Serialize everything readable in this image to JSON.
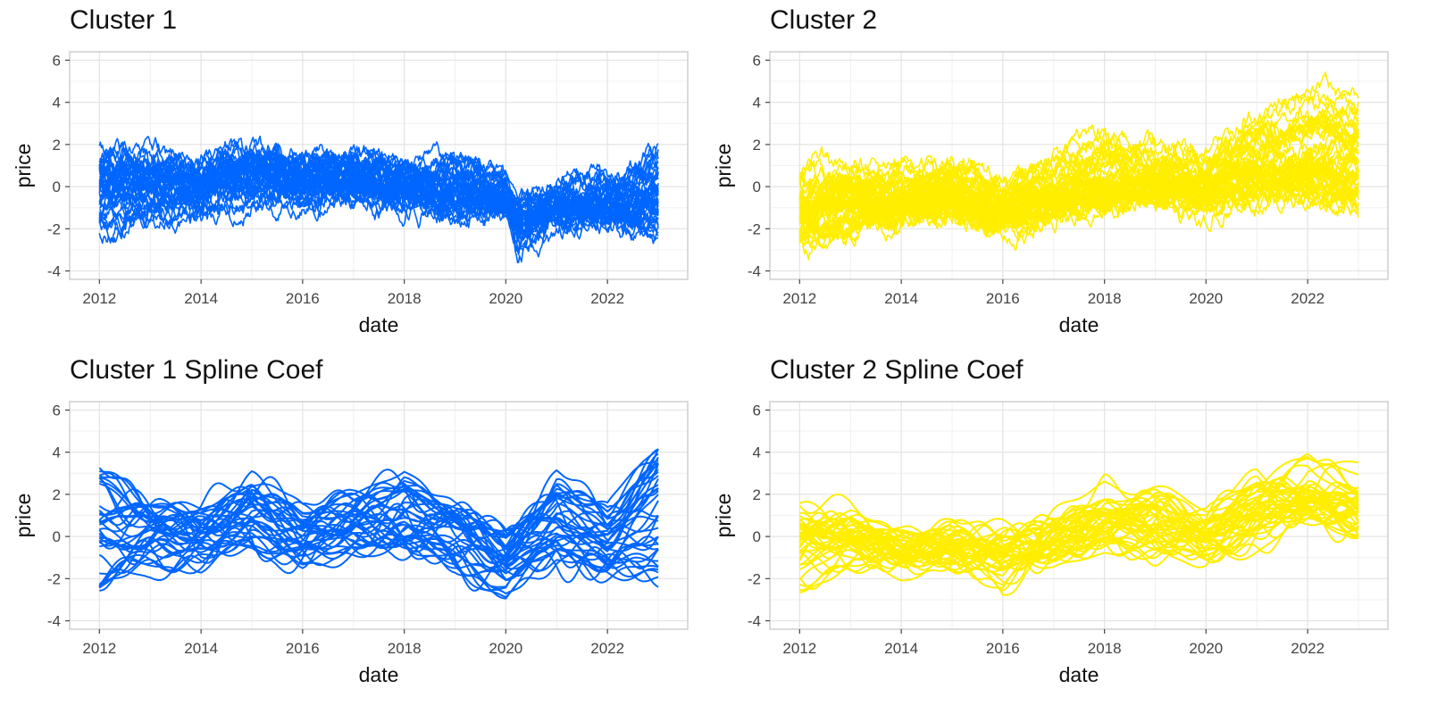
{
  "chart_data": [
    {
      "type": "line",
      "title": "Cluster 1",
      "xlabel": "date",
      "ylabel": "price",
      "x_ticks": [
        "2012",
        "2014",
        "2016",
        "2018",
        "2020",
        "2022"
      ],
      "y_ticks": [
        "-4",
        "-2",
        "0",
        "2",
        "4",
        "6"
      ],
      "xlim": [
        "2011-06-01",
        "2023-08-01"
      ],
      "ylim": [
        -4.4,
        6.4
      ],
      "color": "#0066FF",
      "style": "raw",
      "grid": true,
      "legend": "none",
      "series_count": 40,
      "series": [
        {
          "x": [
            "2012-01-01",
            "2013-01-01",
            "2014-01-01",
            "2015-01-01",
            "2016-01-01",
            "2017-01-01",
            "2018-01-01",
            "2019-01-01",
            "2020-01-01",
            "2020-04-01",
            "2021-01-01",
            "2022-01-01",
            "2023-01-01"
          ],
          "values": [
            3.0,
            2.2,
            1.3,
            2.4,
            1.9,
            1.6,
            1.2,
            1.0,
            0.2,
            -2.3,
            -0.9,
            -0.4,
            1.7
          ]
        },
        {
          "x": [
            "2012-01-01",
            "2013-01-01",
            "2014-01-01",
            "2015-01-01",
            "2016-01-01",
            "2017-01-01",
            "2018-01-01",
            "2019-01-01",
            "2020-01-01",
            "2020-04-01",
            "2021-01-01",
            "2022-01-01",
            "2023-01-01"
          ],
          "values": [
            1.0,
            0.8,
            0.5,
            0.9,
            0.4,
            0.6,
            0.2,
            0.1,
            -0.2,
            -1.6,
            -0.8,
            -1.0,
            -0.4
          ]
        },
        {
          "x": [
            "2012-01-01",
            "2013-01-01",
            "2014-01-01",
            "2015-01-01",
            "2016-01-01",
            "2017-01-01",
            "2018-01-01",
            "2019-01-01",
            "2020-01-01",
            "2020-04-01",
            "2021-01-01",
            "2022-01-01",
            "2023-01-01"
          ],
          "values": [
            -1.9,
            -1.2,
            -0.8,
            -0.2,
            -0.4,
            -0.5,
            -0.6,
            -0.9,
            -1.0,
            -1.8,
            -1.2,
            -1.6,
            -2.2
          ]
        },
        {
          "x": [
            "2012-01-01",
            "2013-01-01",
            "2014-01-01",
            "2015-01-01",
            "2016-01-01",
            "2017-01-01",
            "2018-01-01",
            "2019-01-01",
            "2020-01-01",
            "2020-04-01",
            "2021-01-01",
            "2022-01-01",
            "2023-01-01"
          ],
          "values": [
            -0.2,
            0.1,
            0.6,
            1.2,
            0.8,
            0.9,
            0.3,
            0.4,
            0.0,
            -1.2,
            -0.3,
            0.1,
            1.2
          ]
        }
      ]
    },
    {
      "type": "line",
      "title": "Cluster 2",
      "xlabel": "date",
      "ylabel": "price",
      "x_ticks": [
        "2012",
        "2014",
        "2016",
        "2018",
        "2020",
        "2022"
      ],
      "y_ticks": [
        "-4",
        "-2",
        "0",
        "2",
        "4",
        "6"
      ],
      "xlim": [
        "2011-06-01",
        "2023-08-01"
      ],
      "ylim": [
        -4.4,
        6.4
      ],
      "color": "#FFEE00",
      "style": "raw",
      "grid": true,
      "legend": "none",
      "series_count": 45,
      "series": [
        {
          "x": [
            "2012-01-01",
            "2013-01-01",
            "2014-01-01",
            "2015-01-01",
            "2016-01-01",
            "2017-01-01",
            "2018-01-01",
            "2019-01-01",
            "2020-01-01",
            "2021-01-01",
            "2022-01-01",
            "2023-01-01"
          ],
          "values": [
            -2.6,
            -1.5,
            -0.8,
            -0.6,
            -1.3,
            -0.7,
            -0.2,
            0.2,
            0.0,
            0.6,
            1.2,
            1.0
          ]
        },
        {
          "x": [
            "2012-01-01",
            "2013-01-01",
            "2014-01-01",
            "2015-01-01",
            "2016-01-01",
            "2017-01-01",
            "2018-01-01",
            "2019-01-01",
            "2020-01-01",
            "2021-01-01",
            "2022-01-01",
            "2023-01-01"
          ],
          "values": [
            1.0,
            1.2,
            0.6,
            0.9,
            0.2,
            1.5,
            2.6,
            1.9,
            1.0,
            3.2,
            4.8,
            4.4
          ]
        },
        {
          "x": [
            "2012-01-01",
            "2013-01-01",
            "2014-01-01",
            "2015-01-01",
            "2016-01-01",
            "2017-01-01",
            "2018-01-01",
            "2019-01-01",
            "2020-01-01",
            "2021-01-01",
            "2022-01-01",
            "2023-01-01"
          ],
          "values": [
            -0.5,
            -0.2,
            -0.6,
            -0.4,
            -0.9,
            -0.3,
            0.4,
            0.8,
            0.3,
            1.4,
            2.0,
            2.3
          ]
        },
        {
          "x": [
            "2012-01-01",
            "2013-01-01",
            "2014-01-01",
            "2015-01-01",
            "2016-01-01",
            "2017-01-01",
            "2018-01-01",
            "2019-01-01",
            "2020-01-01",
            "2021-01-01",
            "2022-01-01",
            "2023-01-01"
          ],
          "values": [
            -1.4,
            -1.0,
            -1.2,
            -0.8,
            -1.6,
            -0.9,
            -0.6,
            -0.4,
            -0.8,
            -0.3,
            -0.5,
            -1.3
          ]
        }
      ]
    },
    {
      "type": "line",
      "title": "Cluster 1 Spline Coef",
      "xlabel": "date",
      "ylabel": "price",
      "x_ticks": [
        "2012",
        "2014",
        "2016",
        "2018",
        "2020",
        "2022"
      ],
      "y_ticks": [
        "-4",
        "-2",
        "0",
        "2",
        "4",
        "6"
      ],
      "xlim": [
        "2011-06-01",
        "2023-08-01"
      ],
      "ylim": [
        -4.4,
        6.4
      ],
      "color": "#0066FF",
      "style": "smooth",
      "grid": true,
      "legend": "none",
      "series_count": 40,
      "series": [
        {
          "x": [
            "2012-01-01",
            "2013-01-01",
            "2014-01-01",
            "2015-01-01",
            "2016-01-01",
            "2017-01-01",
            "2018-01-01",
            "2019-01-01",
            "2020-01-01",
            "2021-01-01",
            "2022-01-01",
            "2023-01-01"
          ],
          "values": [
            3.2,
            1.4,
            1.0,
            2.3,
            1.1,
            1.6,
            2.9,
            0.8,
            0.2,
            2.7,
            1.0,
            4.4
          ]
        },
        {
          "x": [
            "2012-01-01",
            "2013-01-01",
            "2014-01-01",
            "2015-01-01",
            "2016-01-01",
            "2017-01-01",
            "2018-01-01",
            "2019-01-01",
            "2020-01-01",
            "2021-01-01",
            "2022-01-01",
            "2023-01-01"
          ],
          "values": [
            -2.8,
            -1.6,
            -0.6,
            0.2,
            -0.8,
            0.0,
            -0.4,
            -0.9,
            -2.7,
            -1.0,
            -1.3,
            -2.2
          ]
        },
        {
          "x": [
            "2012-01-01",
            "2013-01-01",
            "2014-01-01",
            "2015-01-01",
            "2016-01-01",
            "2017-01-01",
            "2018-01-01",
            "2019-01-01",
            "2020-01-01",
            "2021-01-01",
            "2022-01-01",
            "2023-01-01"
          ],
          "values": [
            0.6,
            1.2,
            0.4,
            1.5,
            0.3,
            0.9,
            0.5,
            1.4,
            -0.3,
            0.7,
            0.0,
            2.8
          ]
        },
        {
          "x": [
            "2012-01-01",
            "2013-01-01",
            "2014-01-01",
            "2015-01-01",
            "2016-01-01",
            "2017-01-01",
            "2018-01-01",
            "2019-01-01",
            "2020-01-01",
            "2021-01-01",
            "2022-01-01",
            "2023-01-01"
          ],
          "values": [
            -0.8,
            -0.3,
            -1.0,
            -0.5,
            -1.4,
            -0.7,
            -0.2,
            -1.1,
            -1.8,
            -0.6,
            -1.5,
            -0.9
          ]
        }
      ]
    },
    {
      "type": "line",
      "title": "Cluster 2 Spline Coef",
      "xlabel": "date",
      "ylabel": "price",
      "x_ticks": [
        "2012",
        "2014",
        "2016",
        "2018",
        "2020",
        "2022"
      ],
      "y_ticks": [
        "-4",
        "-2",
        "0",
        "2",
        "4",
        "6"
      ],
      "xlim": [
        "2011-06-01",
        "2023-08-01"
      ],
      "ylim": [
        -4.4,
        6.4
      ],
      "color": "#FFEE00",
      "style": "smooth",
      "grid": true,
      "legend": "none",
      "series_count": 45,
      "series": [
        {
          "x": [
            "2012-01-01",
            "2013-01-01",
            "2014-01-01",
            "2015-01-01",
            "2016-01-01",
            "2017-01-01",
            "2018-01-01",
            "2019-01-01",
            "2020-01-01",
            "2021-01-01",
            "2022-01-01",
            "2023-01-01"
          ],
          "values": [
            1.8,
            1.0,
            -0.6,
            -0.5,
            -2.2,
            0.4,
            2.5,
            1.6,
            1.0,
            1.4,
            3.9,
            3.3
          ]
        },
        {
          "x": [
            "2012-01-01",
            "2013-01-01",
            "2014-01-01",
            "2015-01-01",
            "2016-01-01",
            "2017-01-01",
            "2018-01-01",
            "2019-01-01",
            "2020-01-01",
            "2021-01-01",
            "2022-01-01",
            "2023-01-01"
          ],
          "values": [
            -2.2,
            -1.3,
            -0.9,
            -0.7,
            -1.2,
            -0.6,
            0.1,
            0.3,
            -0.2,
            0.9,
            1.5,
            1.2
          ]
        },
        {
          "x": [
            "2012-01-01",
            "2013-01-01",
            "2014-01-01",
            "2015-01-01",
            "2016-01-01",
            "2017-01-01",
            "2018-01-01",
            "2019-01-01",
            "2020-01-01",
            "2021-01-01",
            "2022-01-01",
            "2023-01-01"
          ],
          "values": [
            0.3,
            0.8,
            -0.3,
            0.1,
            -0.6,
            0.6,
            1.2,
            1.9,
            0.8,
            2.6,
            2.2,
            1.6
          ]
        },
        {
          "x": [
            "2012-01-01",
            "2013-01-01",
            "2014-01-01",
            "2015-01-01",
            "2016-01-01",
            "2017-01-01",
            "2018-01-01",
            "2019-01-01",
            "2020-01-01",
            "2021-01-01",
            "2022-01-01",
            "2023-01-01"
          ],
          "values": [
            -1.0,
            -0.6,
            -1.1,
            -0.8,
            -0.4,
            -1.0,
            -0.5,
            -0.9,
            -1.2,
            0.1,
            0.6,
            -0.2
          ]
        }
      ]
    }
  ]
}
